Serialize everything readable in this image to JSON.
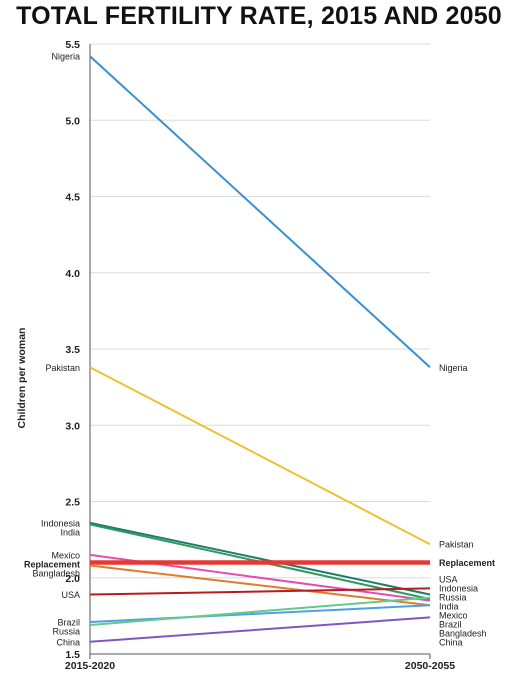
{
  "chart_data": {
    "type": "line",
    "title": "TOTAL FERTILITY RATE, 2015 AND 2050",
    "ylabel": "Children per woman",
    "xlabel": "",
    "categories": [
      "2015-2020",
      "2050-2055"
    ],
    "ylim": [
      1.5,
      5.5
    ],
    "yticks": [
      "1.5",
      "2.0",
      "2.5",
      "3.0",
      "3.5",
      "4.0",
      "4.5",
      "5.0",
      "5.5"
    ],
    "grid": true,
    "series": [
      {
        "name": "Nigeria",
        "color": "#3a8fd0",
        "values": [
          5.42,
          3.38
        ],
        "bold": false
      },
      {
        "name": "Pakistan",
        "color": "#ecc232",
        "values": [
          3.38,
          2.22
        ],
        "bold": false
      },
      {
        "name": "Indonesia",
        "color": "#1f7a6e",
        "values": [
          2.36,
          1.89
        ],
        "bold": false
      },
      {
        "name": "India",
        "color": "#2e9a5c",
        "values": [
          2.35,
          1.86
        ],
        "bold": false
      },
      {
        "name": "Mexico",
        "color": "#e04fb0",
        "values": [
          2.15,
          1.85
        ],
        "bold": false
      },
      {
        "name": "Replacement",
        "color": "#e53935",
        "values": [
          2.1,
          2.1
        ],
        "bold": true
      },
      {
        "name": "Bangladesh",
        "color": "#e07b2a",
        "values": [
          2.08,
          1.82
        ],
        "bold": false
      },
      {
        "name": "USA",
        "color": "#b71c1c",
        "values": [
          1.89,
          1.93
        ],
        "bold": false
      },
      {
        "name": "Brazil",
        "color": "#4aa3e0",
        "values": [
          1.71,
          1.82
        ],
        "bold": false
      },
      {
        "name": "Russia",
        "color": "#66c88a",
        "values": [
          1.69,
          1.87
        ],
        "bold": false
      },
      {
        "name": "China",
        "color": "#7e57c2",
        "values": [
          1.58,
          1.74
        ],
        "bold": false
      }
    ],
    "labels_left": [
      {
        "text": "Nigeria",
        "bold": false
      },
      {
        "text": "Pakistan",
        "bold": false
      },
      {
        "text": "Indonesia",
        "bold": false
      },
      {
        "text": "India",
        "bold": false
      },
      {
        "text": "Mexico",
        "bold": false
      },
      {
        "text": "Replacement",
        "bold": true
      },
      {
        "text": "Bangladesh",
        "bold": false
      },
      {
        "text": "USA",
        "bold": false
      },
      {
        "text": "Brazil",
        "bold": false
      },
      {
        "text": "Russia",
        "bold": false
      },
      {
        "text": "China",
        "bold": false
      }
    ],
    "labels_right": [
      {
        "text": "Nigeria",
        "bold": false
      },
      {
        "text": "Pakistan",
        "bold": false
      },
      {
        "text": "Replacement",
        "bold": true
      },
      {
        "text": "USA",
        "bold": false
      },
      {
        "text": "Indonesia",
        "bold": false
      },
      {
        "text": "Russia",
        "bold": false
      },
      {
        "text": "India",
        "bold": false
      },
      {
        "text": "China",
        "bold": false
      },
      {
        "text": "Mexico",
        "bold": false
      },
      {
        "text": "Brazil",
        "bold": false
      },
      {
        "text": "Bangladesh",
        "bold": false
      }
    ]
  }
}
